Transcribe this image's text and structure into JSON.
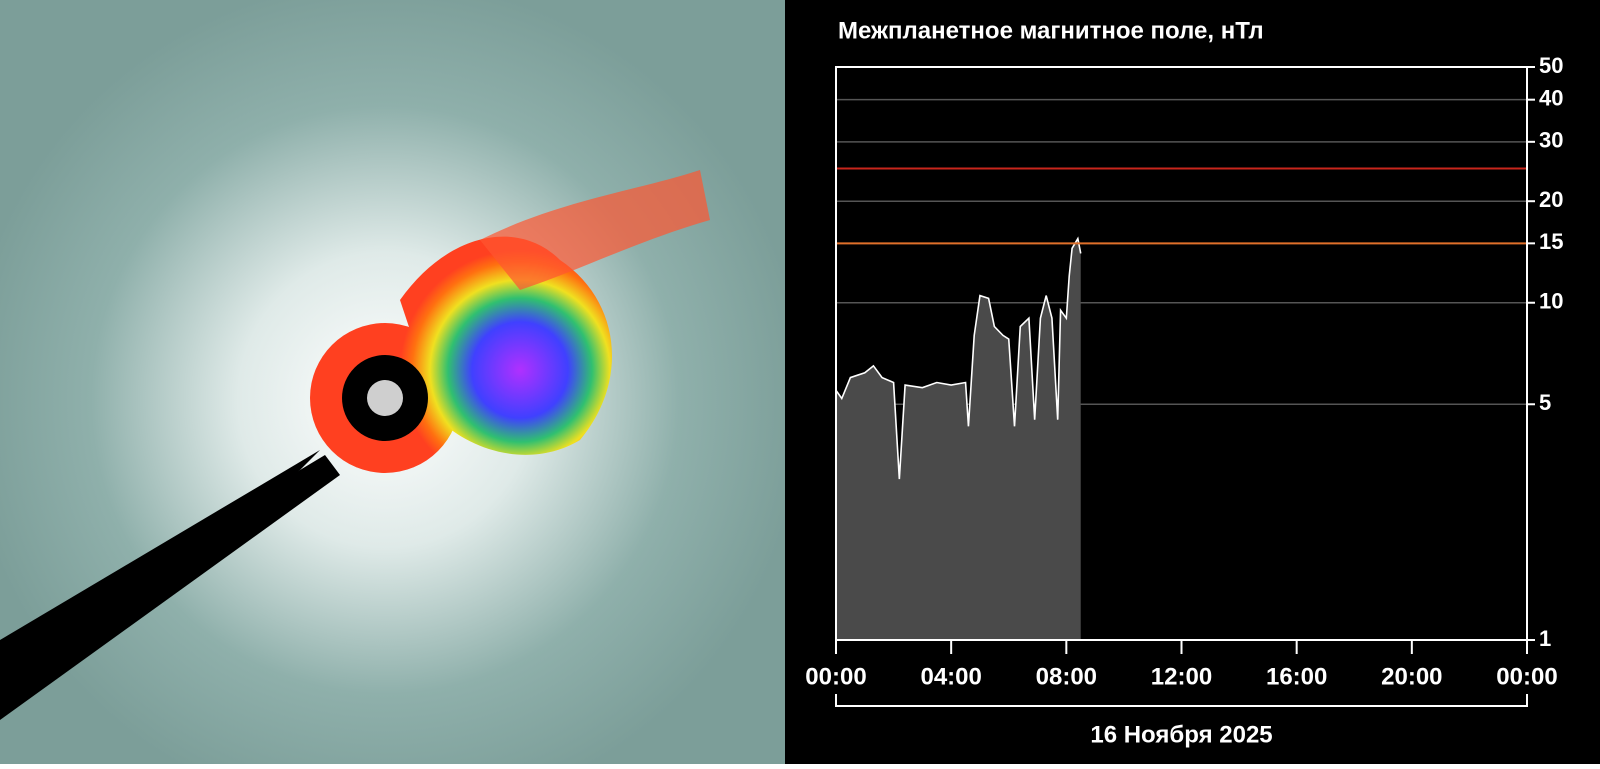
{
  "chart_data": {
    "type": "line",
    "title": "Межпланетное магнитное поле, нТл",
    "date_label": "16 Ноября 2025",
    "log_scale": true,
    "grid": true,
    "xlim": [
      0,
      24
    ],
    "xticks": [
      {
        "value": 0,
        "label": "00:00"
      },
      {
        "value": 4,
        "label": "04:00"
      },
      {
        "value": 8,
        "label": "08:00"
      },
      {
        "value": 12,
        "label": "12:00"
      },
      {
        "value": 16,
        "label": "16:00"
      },
      {
        "value": 20,
        "label": "20:00"
      },
      {
        "value": 24,
        "label": "00:00"
      }
    ],
    "ylim": [
      1,
      50
    ],
    "yticks": [
      1,
      5,
      10,
      15,
      20,
      30,
      40,
      50
    ],
    "reference_lines": [
      {
        "value": 15,
        "color": "#e0702a"
      },
      {
        "value": 25,
        "color": "#c8261c"
      }
    ],
    "series": [
      {
        "color": "#ffffff",
        "fill": "#4a4a4a",
        "x": [
          0,
          0.2,
          0.5,
          1,
          1.3,
          1.6,
          2,
          2.2,
          2.4,
          3,
          3.5,
          4,
          4.5,
          4.6,
          4.8,
          5,
          5.3,
          5.5,
          5.8,
          6,
          6.2,
          6.4,
          6.7,
          6.9,
          7.1,
          7.3,
          7.5,
          7.7,
          7.8,
          8,
          8.1,
          8.2,
          8.4,
          8.5
        ],
        "values": [
          5.5,
          5.2,
          6,
          6.2,
          6.5,
          6,
          5.8,
          3.0,
          5.7,
          5.6,
          5.8,
          5.7,
          5.8,
          4.3,
          8,
          10.5,
          10.3,
          8.5,
          8,
          7.8,
          4.3,
          8.5,
          9,
          4.5,
          9,
          10.5,
          9,
          4.5,
          9.5,
          9,
          12,
          14.5,
          15.5,
          14
        ]
      }
    ]
  }
}
